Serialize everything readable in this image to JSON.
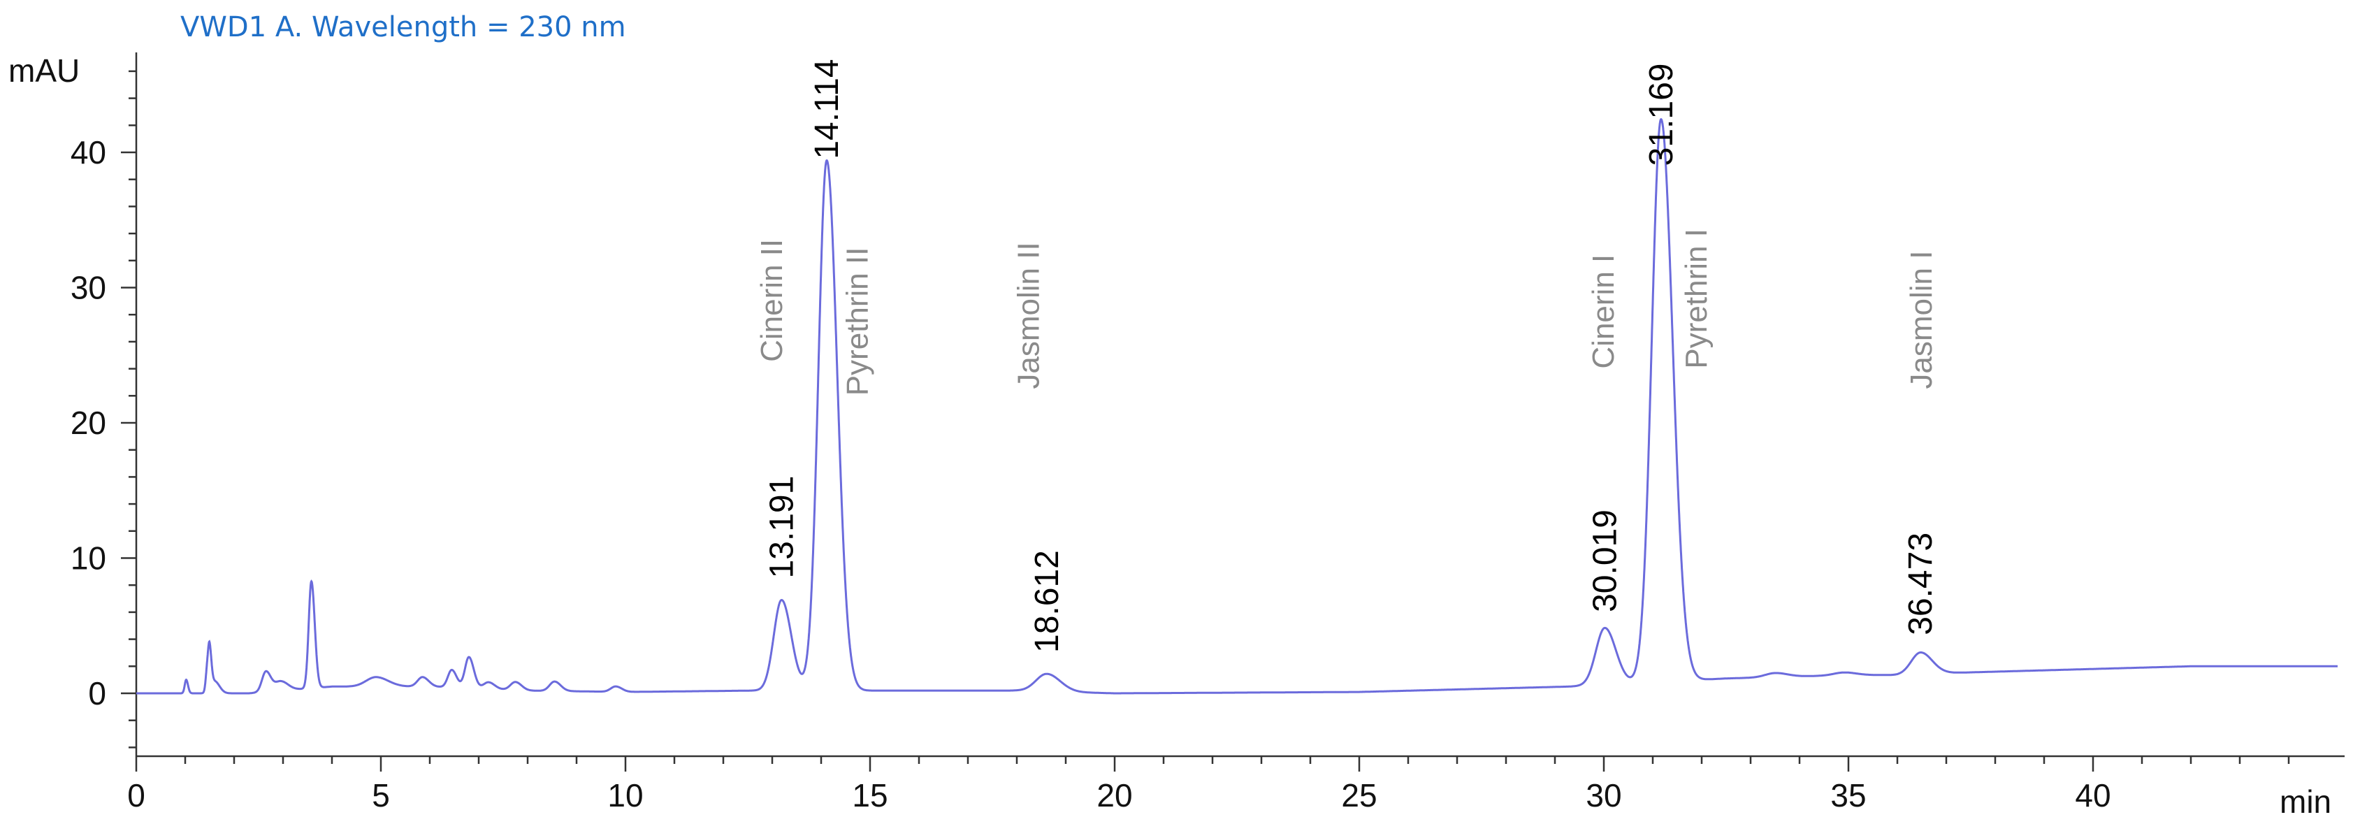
{
  "chart_data": {
    "type": "line",
    "title": "VWD1 A. Wavelength = 230 nm",
    "ylabel": "mAU",
    "xlabel": "min",
    "xlim": [
      0,
      45
    ],
    "ylim": [
      -4.5,
      47
    ],
    "x_ticks": [
      0,
      5,
      10,
      15,
      20,
      25,
      30,
      35,
      40
    ],
    "y_ticks": [
      0,
      10,
      20,
      30,
      40
    ],
    "grid": false,
    "colors": {
      "trace": "#6b6bdc",
      "title": "#1f6fc8",
      "compound_labels": "#8a8a8a"
    },
    "series": [
      {
        "baseline": [
          [
            0,
            0
          ],
          [
            2.3,
            0
          ],
          [
            4,
            0.5
          ],
          [
            6,
            0.5
          ],
          [
            8,
            0.2
          ],
          [
            10,
            0.1
          ],
          [
            12.6,
            0.2
          ],
          [
            18,
            0.2
          ],
          [
            20,
            0
          ],
          [
            25,
            0.1
          ],
          [
            29.3,
            0.5
          ],
          [
            32.5,
            1.1
          ],
          [
            35,
            1.35
          ],
          [
            36,
            1.35
          ],
          [
            37,
            1.5
          ],
          [
            40,
            1.8
          ],
          [
            42,
            2
          ],
          [
            45,
            2
          ]
        ],
        "peaks": [
          {
            "rt": 1.02,
            "h": 1.0,
            "w": 0.03
          },
          {
            "rt": 1.45,
            "h": 1.6,
            "w": 0.03
          },
          {
            "rt": 1.5,
            "h": 2.7,
            "w": 0.03
          },
          {
            "rt": 1.6,
            "h": 0.9,
            "w": 0.08
          },
          {
            "rt": 2.65,
            "h": 1.5,
            "w": 0.08
          },
          {
            "rt": 2.95,
            "h": 0.7,
            "w": 0.12
          },
          {
            "rt": 3.58,
            "h": 7.9,
            "w": 0.055
          },
          {
            "rt": 4.9,
            "h": 0.7,
            "w": 0.2
          },
          {
            "rt": 5.85,
            "h": 0.7,
            "w": 0.1
          },
          {
            "rt": 6.45,
            "h": 1.3,
            "w": 0.08
          },
          {
            "rt": 6.8,
            "h": 2.3,
            "w": 0.08
          },
          {
            "rt": 7.2,
            "h": 0.5,
            "w": 0.1
          },
          {
            "rt": 7.75,
            "h": 0.6,
            "w": 0.1
          },
          {
            "rt": 8.55,
            "h": 0.7,
            "w": 0.1
          },
          {
            "rt": 9.8,
            "h": 0.4,
            "w": 0.1
          },
          {
            "rt": 13.191,
            "h": 6.7,
            "w": 0.16
          },
          {
            "rt": 14.114,
            "h": 39.2,
            "w": 0.17
          },
          {
            "rt": 18.612,
            "h": 1.3,
            "w": 0.22
          },
          {
            "rt": 30.019,
            "h": 4.2,
            "w": 0.18
          },
          {
            "rt": 31.169,
            "h": 41.6,
            "w": 0.19
          },
          {
            "rt": 33.5,
            "h": 0.3,
            "w": 0.2
          },
          {
            "rt": 34.9,
            "h": 0.2,
            "w": 0.2
          },
          {
            "rt": 36.473,
            "h": 1.6,
            "w": 0.19
          }
        ]
      }
    ],
    "annotations": [
      {
        "text": "13.191",
        "x": 13.191,
        "y": 8.5,
        "kind": "rt"
      },
      {
        "text": "14.114",
        "x": 14.114,
        "y": 39.5,
        "kind": "rt"
      },
      {
        "text": "18.612",
        "x": 18.612,
        "y": 3.0,
        "kind": "rt"
      },
      {
        "text": "30.019",
        "x": 30.019,
        "y": 6.0,
        "kind": "rt"
      },
      {
        "text": "31.169",
        "x": 31.169,
        "y": 39.0,
        "kind": "rt"
      },
      {
        "text": "36.473",
        "x": 36.473,
        "y": 4.3,
        "kind": "rt"
      },
      {
        "text": "Cinerin II",
        "x": 13.0,
        "y": 24.5,
        "kind": "compound"
      },
      {
        "text": "Pyrethrin II",
        "x": 14.75,
        "y": 22.0,
        "kind": "compound"
      },
      {
        "text": "Jasmolin II",
        "x": 18.25,
        "y": 22.5,
        "kind": "compound"
      },
      {
        "text": "Cinerin I",
        "x": 30.0,
        "y": 24.0,
        "kind": "compound"
      },
      {
        "text": "Pyrethrin I",
        "x": 31.9,
        "y": 24.0,
        "kind": "compound"
      },
      {
        "text": "Jasmolin I",
        "x": 36.5,
        "y": 22.5,
        "kind": "compound"
      }
    ]
  }
}
